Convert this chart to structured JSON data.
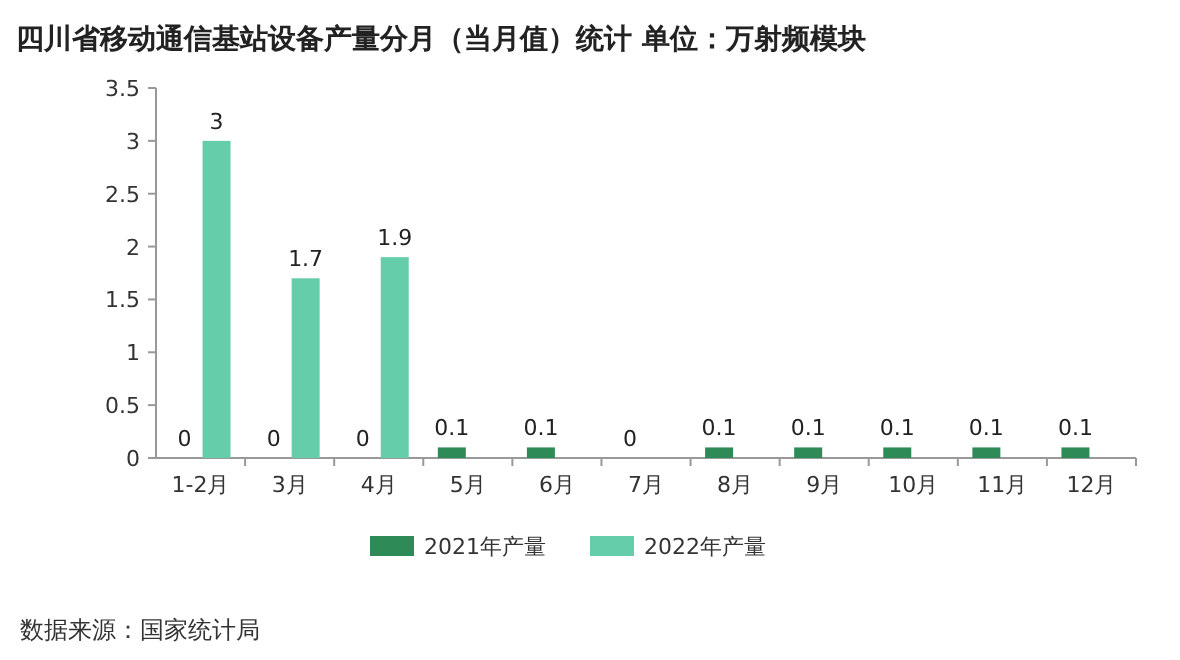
{
  "chart_data": {
    "type": "bar",
    "title": "四川省移动通信基站设备产量分月（当月值）统计  单位：万射频模块",
    "categories": [
      "1-2月",
      "3月",
      "4月",
      "5月",
      "6月",
      "7月",
      "8月",
      "9月",
      "10月",
      "11月",
      "12月"
    ],
    "series": [
      {
        "name": "2021年产量",
        "color": "#2e8b57",
        "values": [
          0,
          0,
          0,
          0.1,
          0.1,
          0,
          0.1,
          0.1,
          0.1,
          0.1,
          0.1
        ]
      },
      {
        "name": "2022年产量",
        "color": "#66cdaa",
        "values": [
          3,
          1.7,
          1.9,
          null,
          null,
          null,
          null,
          null,
          null,
          null,
          null
        ]
      }
    ],
    "ylim": [
      0,
      3.5
    ],
    "yticks": [
      0,
      0.5,
      1,
      1.5,
      2,
      2.5,
      3,
      3.5
    ],
    "data_labels": true,
    "legend": "bottom",
    "annotations": [
      "数据来源：国家统计局"
    ]
  }
}
